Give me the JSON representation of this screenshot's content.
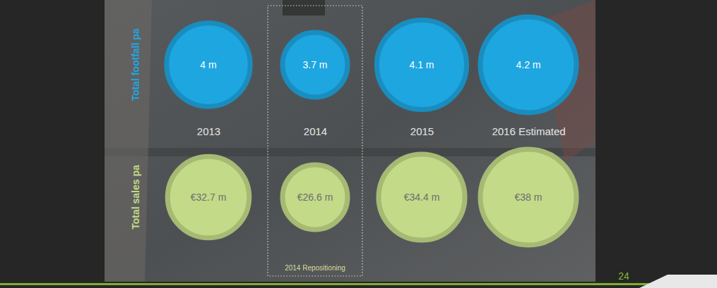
{
  "chart_data": {
    "type": "bubble",
    "categories": [
      "2013",
      "2014",
      "2015",
      "2016 Estimated"
    ],
    "series": [
      {
        "name": "Total footfall pa",
        "color": "#1ea6e0",
        "values": [
          4,
          3.7,
          4.1,
          4.2
        ],
        "value_labels": [
          "4 m",
          "3.7 m",
          "4.1 m",
          "4.2 m"
        ]
      },
      {
        "name": "Total sales pa",
        "color": "#c3da88",
        "values": [
          32.7,
          26.6,
          34.4,
          38
        ],
        "value_labels": [
          "€32.7 m",
          "€26.6 m",
          "€34.4 m",
          "€38 m"
        ]
      }
    ],
    "data_labels": true,
    "annotations": [
      {
        "text": "2014 Repositioning",
        "category": "2014"
      },
      {
        "text": "24"
      }
    ]
  }
}
